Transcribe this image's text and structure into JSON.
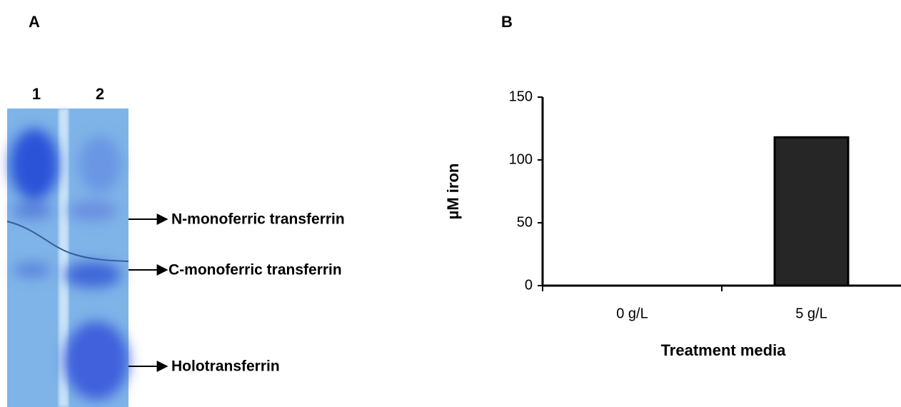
{
  "panel_a": {
    "label": "A",
    "lanes": [
      "1",
      "2"
    ],
    "bands": [
      "N-monoferric transferrin",
      "C-monoferric transferrin",
      "Holotransferrin"
    ]
  },
  "panel_b_label": "B",
  "chart_data": {
    "type": "bar",
    "categories": [
      "0 g/L",
      "5 g/L"
    ],
    "values": [
      0,
      118
    ],
    "color": "#262626",
    "ylim": [
      0,
      150
    ],
    "yticks": [
      0,
      50,
      100,
      150
    ],
    "y_label": "µM  iron",
    "x_label": "Treatment media",
    "grid": false
  }
}
